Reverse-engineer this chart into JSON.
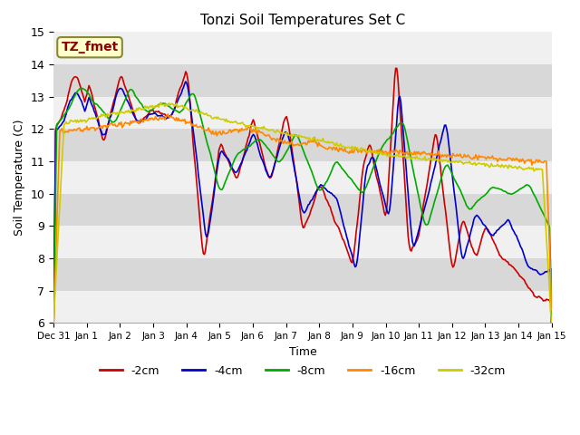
{
  "title": "Tonzi Soil Temperatures Set C",
  "xlabel": "Time",
  "ylabel": "Soil Temperature (C)",
  "ylim": [
    6.0,
    15.0
  ],
  "yticks": [
    6.0,
    7.0,
    8.0,
    9.0,
    10.0,
    11.0,
    12.0,
    13.0,
    14.0,
    15.0
  ],
  "series_colors": {
    "-2cm": "#cc0000",
    "-4cm": "#0000cc",
    "-8cm": "#00aa00",
    "-16cm": "#ff8800",
    "-32cm": "#cccc00"
  },
  "series_labels": [
    "-2cm",
    "-4cm",
    "-8cm",
    "-16cm",
    "-32cm"
  ],
  "annotation_label": "TZ_fmet",
  "annotation_color": "#8b0000",
  "annotation_bg": "#ffffcc",
  "x_ticklabels": [
    "Dec 31",
    "Jan 1",
    "Jan 2",
    "Jan 3",
    "Jan 4",
    "Jan 5",
    "Jan 6",
    "Jan 7",
    "Jan 8",
    "Jan 9",
    "Jan 10",
    "Jan 11",
    "Jan 12",
    "Jan 13",
    "Jan 14",
    "Jan 15"
  ],
  "num_points": 480
}
